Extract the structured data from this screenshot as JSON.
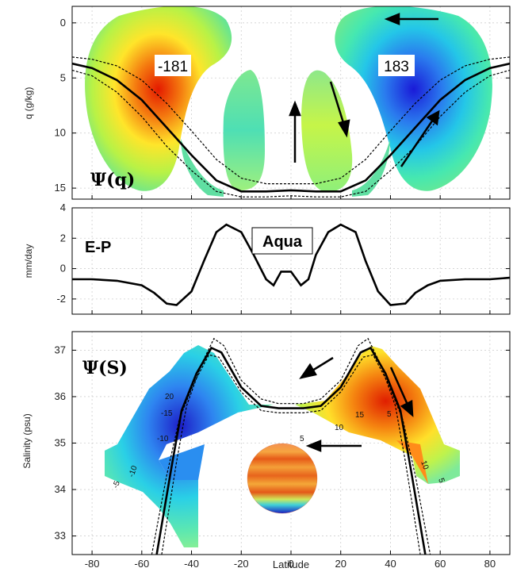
{
  "chart_data": [
    {
      "type": "area",
      "panel": "top",
      "annotation": "Ψ(q)",
      "ylabel": "q (g/kg)",
      "yticks": [
        "0",
        "5",
        "10",
        "15"
      ],
      "ylim": [
        16,
        -1.5
      ],
      "extremes": [
        {
          "label": "-181",
          "lat": -36,
          "q": 3
        },
        {
          "label": "183",
          "lat": 36,
          "q": 3
        }
      ],
      "curves": {
        "solid": [
          [
            -88,
            3.7
          ],
          [
            -80,
            4.1
          ],
          [
            -70,
            5.2
          ],
          [
            -60,
            7.0
          ],
          [
            -50,
            9.5
          ],
          [
            -40,
            12.0
          ],
          [
            -30,
            14.3
          ],
          [
            -20,
            15.3
          ],
          [
            -10,
            15.3
          ],
          [
            0,
            15.2
          ],
          [
            10,
            15.3
          ],
          [
            20,
            15.3
          ],
          [
            30,
            14.3
          ],
          [
            40,
            12.0
          ],
          [
            50,
            9.5
          ],
          [
            60,
            7.0
          ],
          [
            70,
            5.2
          ],
          [
            80,
            4.1
          ],
          [
            88,
            3.7
          ]
        ],
        "dashed_upper": [
          [
            -88,
            3.1
          ],
          [
            -80,
            3.3
          ],
          [
            -70,
            3.9
          ],
          [
            -60,
            5.2
          ],
          [
            -50,
            7.3
          ],
          [
            -40,
            9.8
          ],
          [
            -30,
            12.4
          ],
          [
            -20,
            14.1
          ],
          [
            -10,
            14.6
          ],
          [
            0,
            14.6
          ],
          [
            10,
            14.6
          ],
          [
            20,
            14.1
          ],
          [
            30,
            12.4
          ],
          [
            40,
            9.8
          ],
          [
            50,
            7.3
          ],
          [
            60,
            5.2
          ],
          [
            70,
            3.9
          ],
          [
            80,
            3.3
          ],
          [
            88,
            3.1
          ]
        ],
        "dashed_lower": [
          [
            -88,
            4.3
          ],
          [
            -80,
            4.8
          ],
          [
            -70,
            6.3
          ],
          [
            -60,
            8.5
          ],
          [
            -50,
            11.2
          ],
          [
            -40,
            13.4
          ],
          [
            -30,
            15.3
          ],
          [
            -20,
            15.8
          ],
          [
            -10,
            15.8
          ],
          [
            0,
            15.7
          ],
          [
            10,
            15.8
          ],
          [
            20,
            15.8
          ],
          [
            30,
            15.3
          ],
          [
            40,
            13.4
          ],
          [
            50,
            11.2
          ],
          [
            60,
            8.5
          ],
          [
            70,
            6.3
          ],
          [
            80,
            4.8
          ],
          [
            88,
            4.3
          ]
        ]
      }
    },
    {
      "type": "line",
      "panel": "middle",
      "annotation": "E-P",
      "legend_box": "Aqua",
      "ylabel": "mm/day",
      "yticks": [
        "4",
        "2",
        "0",
        "-2"
      ],
      "ylim": [
        -3,
        4
      ],
      "x": [
        -88,
        -80,
        -70,
        -60,
        -55,
        -50,
        -46,
        -40,
        -35,
        -30,
        -26,
        -20,
        -15,
        -10,
        -7,
        -4,
        0,
        4,
        7,
        10,
        15,
        20,
        26,
        30,
        35,
        40,
        46,
        50,
        55,
        60,
        70,
        80,
        88
      ],
      "y": [
        -0.7,
        -0.7,
        -0.8,
        -1.1,
        -1.6,
        -2.3,
        -2.4,
        -1.5,
        0.5,
        2.4,
        2.9,
        2.4,
        0.9,
        -0.7,
        -1.1,
        -0.2,
        -0.2,
        -1.1,
        -0.7,
        0.9,
        2.4,
        2.9,
        2.4,
        0.5,
        -1.5,
        -2.4,
        -2.3,
        -1.6,
        -1.1,
        -0.8,
        -0.7,
        -0.7,
        -0.6
      ]
    },
    {
      "type": "area",
      "panel": "bottom",
      "annotation": "Ψ(S)",
      "ylabel": "Salinity (psu)",
      "xlabel": "Latitude",
      "yticks": [
        "37",
        "36",
        "35",
        "34",
        "33"
      ],
      "xticks": [
        "-80",
        "-60",
        "-40",
        "-20",
        "0",
        "20",
        "40",
        "60",
        "80"
      ],
      "xlim": [
        -88,
        88
      ],
      "ylim": [
        32.6,
        37.4
      ],
      "contour_labels": [
        "20",
        "-15",
        "-10",
        "-10",
        "-5",
        "5",
        "10",
        "15",
        "5",
        "10",
        "5"
      ],
      "curves": {
        "solid": [
          [
            -54,
            32.6
          ],
          [
            -48,
            34.5
          ],
          [
            -44,
            35.7
          ],
          [
            -38,
            36.5
          ],
          [
            -32,
            37.05
          ],
          [
            -28,
            36.95
          ],
          [
            -20,
            36.2
          ],
          [
            -12,
            35.8
          ],
          [
            -5,
            35.75
          ],
          [
            0,
            35.75
          ],
          [
            5,
            35.75
          ],
          [
            12,
            35.8
          ],
          [
            20,
            36.2
          ],
          [
            28,
            36.95
          ],
          [
            32,
            37.05
          ],
          [
            38,
            36.5
          ],
          [
            44,
            35.7
          ],
          [
            48,
            34.5
          ],
          [
            54,
            32.6
          ]
        ],
        "dashed_outer": [
          [
            -52,
            32.6
          ],
          [
            -46,
            34.6
          ],
          [
            -42,
            35.8
          ],
          [
            -36,
            36.7
          ],
          [
            -31,
            37.25
          ],
          [
            -27,
            37.1
          ],
          [
            -20,
            36.35
          ],
          [
            -12,
            35.95
          ],
          [
            -5,
            35.85
          ],
          [
            0,
            35.85
          ],
          [
            5,
            35.85
          ],
          [
            12,
            35.95
          ],
          [
            20,
            36.35
          ],
          [
            27,
            37.1
          ],
          [
            31,
            37.25
          ],
          [
            36,
            36.7
          ],
          [
            42,
            35.8
          ],
          [
            46,
            34.6
          ],
          [
            52,
            32.6
          ]
        ],
        "dashed_inner": [
          [
            -56,
            32.6
          ],
          [
            -50,
            34.3
          ],
          [
            -45,
            35.5
          ],
          [
            -39,
            36.3
          ],
          [
            -33,
            36.9
          ],
          [
            -29,
            36.85
          ],
          [
            -20,
            36.1
          ],
          [
            -12,
            35.7
          ],
          [
            -5,
            35.65
          ],
          [
            0,
            35.65
          ],
          [
            5,
            35.65
          ],
          [
            12,
            35.7
          ],
          [
            20,
            36.1
          ],
          [
            29,
            36.85
          ],
          [
            33,
            36.9
          ],
          [
            39,
            36.3
          ],
          [
            45,
            35.5
          ],
          [
            50,
            34.3
          ],
          [
            56,
            32.6
          ]
        ]
      }
    }
  ],
  "colors": {
    "positive_extreme": "#e01e00",
    "negative_extreme": "#1e1edc",
    "background_contour": "#5ee1a0",
    "grid": "#c8c8c8",
    "line": "#000000"
  }
}
